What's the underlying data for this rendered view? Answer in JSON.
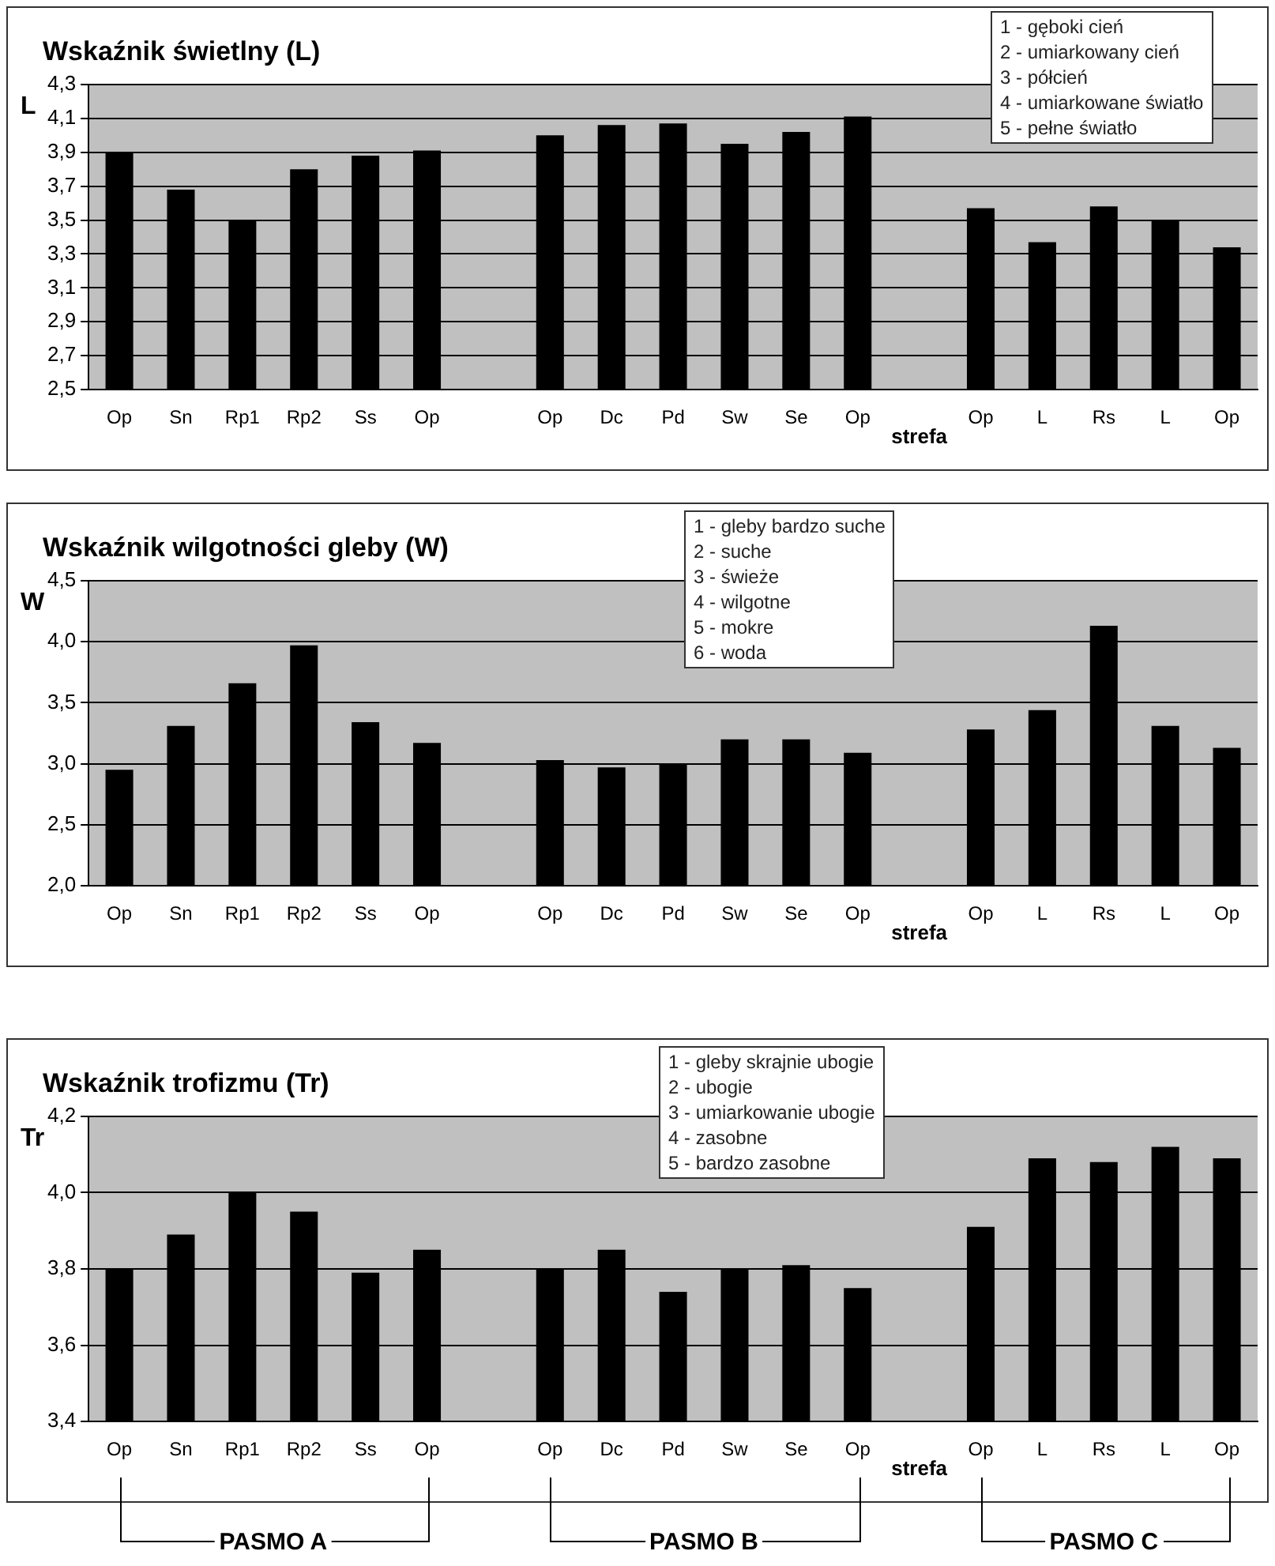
{
  "chart_data": [
    {
      "type": "bar",
      "title": "Wskaźnik świetlny (L)",
      "xlabel": "strefa",
      "ylabel": "L",
      "categories": [
        "Op",
        "Sn",
        "Rp1",
        "Rp2",
        "Ss",
        "Op",
        null,
        "Op",
        "Dc",
        "Pd",
        "Sw",
        "Se",
        "Op",
        null,
        "Op",
        "L",
        "Rs",
        "L",
        "Op"
      ],
      "values": [
        3.9,
        3.68,
        3.5,
        3.8,
        3.88,
        3.91,
        null,
        4.0,
        4.06,
        4.07,
        3.95,
        4.02,
        4.11,
        null,
        3.57,
        3.37,
        3.58,
        3.5,
        3.34
      ],
      "color": "#000000",
      "ylim": [
        2.5,
        4.3
      ],
      "yticks": [
        {
          "value": 2.5,
          "label": "2,5"
        },
        {
          "value": 2.7,
          "label": "2,7"
        },
        {
          "value": 2.9,
          "label": "2,9"
        },
        {
          "value": 3.1,
          "label": "3,1"
        },
        {
          "value": 3.3,
          "label": "3,3"
        },
        {
          "value": 3.5,
          "label": "3,5"
        },
        {
          "value": 3.7,
          "label": "3,7"
        },
        {
          "value": 3.9,
          "label": "3,9"
        },
        {
          "value": 4.1,
          "label": "4,1"
        },
        {
          "value": 4.3,
          "label": "4,3"
        }
      ],
      "grid": "y",
      "annotations": [
        "1 - gęboki cień",
        "2 - umiarkowany cień",
        "3 - półcień",
        "4 - umiarkowane światło",
        "5 - pełne światło"
      ]
    },
    {
      "type": "bar",
      "title": "Wskaźnik wilgotności gleby (W)",
      "xlabel": "strefa",
      "ylabel": "W",
      "categories": [
        "Op",
        "Sn",
        "Rp1",
        "Rp2",
        "Ss",
        "Op",
        null,
        "Op",
        "Dc",
        "Pd",
        "Sw",
        "Se",
        "Op",
        null,
        "Op",
        "L",
        "Rs",
        "L",
        "Op"
      ],
      "values": [
        2.95,
        3.31,
        3.66,
        3.97,
        3.34,
        3.17,
        null,
        3.03,
        2.97,
        3.0,
        3.2,
        3.2,
        3.09,
        null,
        3.28,
        3.44,
        4.13,
        3.31,
        3.13
      ],
      "color": "#000000",
      "ylim": [
        2.0,
        4.5
      ],
      "yticks": [
        {
          "value": 2.0,
          "label": "2,0"
        },
        {
          "value": 2.5,
          "label": "2,5"
        },
        {
          "value": 3.0,
          "label": "3,0"
        },
        {
          "value": 3.5,
          "label": "3,5"
        },
        {
          "value": 4.0,
          "label": "4,0"
        },
        {
          "value": 4.5,
          "label": "4,5"
        }
      ],
      "grid": "y",
      "annotations": [
        "1 - gleby bardzo suche",
        "2 - suche",
        "3 - świeże",
        "4 - wilgotne",
        "5 - mokre",
        "6 - woda"
      ]
    },
    {
      "type": "bar",
      "title": "Wskaźnik trofizmu (Tr)",
      "xlabel": "strefa",
      "ylabel": "Tr",
      "categories": [
        "Op",
        "Sn",
        "Rp1",
        "Rp2",
        "Ss",
        "Op",
        null,
        "Op",
        "Dc",
        "Pd",
        "Sw",
        "Se",
        "Op",
        null,
        "Op",
        "L",
        "Rs",
        "L",
        "Op"
      ],
      "values": [
        3.8,
        3.89,
        4.0,
        3.95,
        3.79,
        3.85,
        null,
        3.8,
        3.85,
        3.74,
        3.8,
        3.81,
        3.75,
        null,
        3.91,
        4.09,
        4.08,
        4.12,
        4.09
      ],
      "color": "#000000",
      "ylim": [
        3.4,
        4.2
      ],
      "yticks": [
        {
          "value": 3.4,
          "label": "3,4"
        },
        {
          "value": 3.6,
          "label": "3,6"
        },
        {
          "value": 3.8,
          "label": "3,8"
        },
        {
          "value": 4.0,
          "label": "4,0"
        },
        {
          "value": 4.2,
          "label": "4,2"
        }
      ],
      "grid": "y",
      "annotations": [
        "1 - gleby skrajnie ubogie",
        "2 - ubogie",
        "3 - umiarkowanie ubogie",
        "4 - zasobne",
        "5 - bardzo zasobne",
        "PASMO  A",
        "PASMO  B",
        "PASMO  C"
      ]
    }
  ]
}
